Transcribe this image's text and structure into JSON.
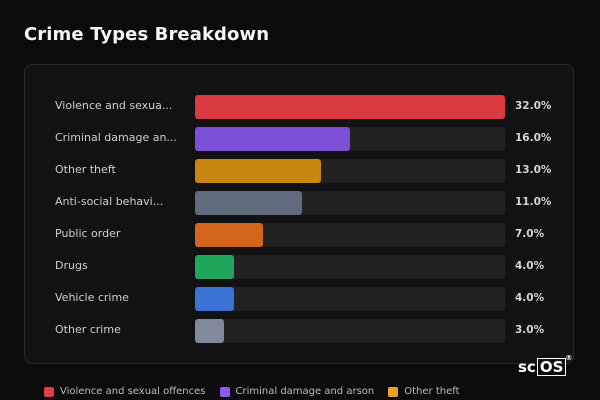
{
  "title": "Crime Types Breakdown",
  "chart_data": {
    "type": "bar",
    "orientation": "horizontal",
    "title": "Crime Types Breakdown",
    "xlabel": "",
    "ylabel": "",
    "xlim": [
      0,
      32
    ],
    "categories": [
      "Violence and sexua...",
      "Criminal damage an...",
      "Other theft",
      "Anti-social behavi...",
      "Public order",
      "Drugs",
      "Vehicle crime",
      "Other crime"
    ],
    "values": [
      32.0,
      16.0,
      13.0,
      11.0,
      7.0,
      4.0,
      4.0,
      3.0
    ],
    "value_labels": [
      "32.0%",
      "16.0%",
      "13.0%",
      "11.0%",
      "7.0%",
      "4.0%",
      "4.0%",
      "3.0%"
    ],
    "colors": [
      "#d9393f",
      "#7b4fd6",
      "#c98712",
      "#606b7d",
      "#d2641c",
      "#20a65a",
      "#3a72d6",
      "#808a9b"
    ],
    "legend": {
      "position": "bottom",
      "entries": [
        {
          "label": "Violence and sexual offences",
          "color": "#e0404a"
        },
        {
          "label": "Criminal damage and arson",
          "color": "#8a5cf0"
        },
        {
          "label": "Other theft",
          "color": "#f0a020"
        }
      ]
    },
    "grid": false
  },
  "brand": {
    "text_plain": "sc",
    "text_boxed": "OS",
    "mark": "®"
  }
}
